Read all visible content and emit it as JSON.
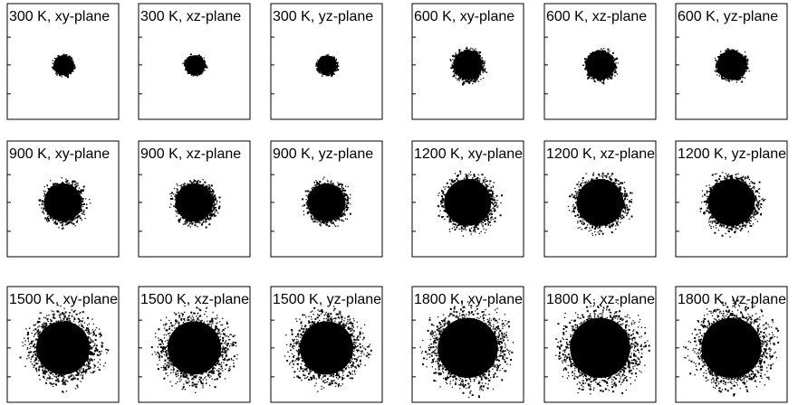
{
  "chart_data": {
    "type": "scatter",
    "description_note": "",
    "panels": [
      {
        "title": "300 K, xy-plane",
        "temperature_K": 300,
        "plane": "xy",
        "core_radius": 0.085,
        "halo_radius": 0.11
      },
      {
        "title": "300 K, xz-plane",
        "temperature_K": 300,
        "plane": "xz",
        "core_radius": 0.085,
        "halo_radius": 0.11
      },
      {
        "title": "300 K, yz-plane",
        "temperature_K": 300,
        "plane": "yz",
        "core_radius": 0.085,
        "halo_radius": 0.11
      },
      {
        "title": "600 K, xy-plane",
        "temperature_K": 600,
        "plane": "xy",
        "core_radius": 0.13,
        "halo_radius": 0.18
      },
      {
        "title": "600 K, xz-plane",
        "temperature_K": 600,
        "plane": "xz",
        "core_radius": 0.13,
        "halo_radius": 0.17
      },
      {
        "title": "600 K, yz-plane",
        "temperature_K": 600,
        "plane": "yz",
        "core_radius": 0.13,
        "halo_radius": 0.17
      },
      {
        "title": "900 K, xy-plane",
        "temperature_K": 900,
        "plane": "xy",
        "core_radius": 0.17,
        "halo_radius": 0.24
      },
      {
        "title": "900 K, xz-plane",
        "temperature_K": 900,
        "plane": "xz",
        "core_radius": 0.17,
        "halo_radius": 0.24
      },
      {
        "title": "900 K, yz-plane",
        "temperature_K": 900,
        "plane": "yz",
        "core_radius": 0.17,
        "halo_radius": 0.24
      },
      {
        "title": "1200 K, xy-plane",
        "temperature_K": 1200,
        "plane": "xy",
        "core_radius": 0.21,
        "halo_radius": 0.31
      },
      {
        "title": "1200 K, xz-plane",
        "temperature_K": 1200,
        "plane": "xz",
        "core_radius": 0.21,
        "halo_radius": 0.31
      },
      {
        "title": "1200 K, yz-plane",
        "temperature_K": 1200,
        "plane": "yz",
        "core_radius": 0.21,
        "halo_radius": 0.31
      },
      {
        "title": "1500 K, xy-plane",
        "temperature_K": 1500,
        "plane": "xy",
        "core_radius": 0.24,
        "halo_radius": 0.4
      },
      {
        "title": "1500 K, xz-plane",
        "temperature_K": 1500,
        "plane": "xz",
        "core_radius": 0.24,
        "halo_radius": 0.4
      },
      {
        "title": "1500 K, yz-plane",
        "temperature_K": 1500,
        "plane": "yz",
        "core_radius": 0.24,
        "halo_radius": 0.4
      },
      {
        "title": "1800 K, xy-plane",
        "temperature_K": 1800,
        "plane": "xy",
        "core_radius": 0.27,
        "halo_radius": 0.45
      },
      {
        "title": "1800 K, xz-plane",
        "temperature_K": 1800,
        "plane": "xz",
        "core_radius": 0.27,
        "halo_radius": 0.45
      },
      {
        "title": "1800 K, yz-plane",
        "temperature_K": 1800,
        "plane": "yz",
        "core_radius": 0.27,
        "halo_radius": 0.45
      }
    ],
    "grid": false,
    "tick_marks": "left side, unlabeled",
    "marker_color": "#000000"
  }
}
